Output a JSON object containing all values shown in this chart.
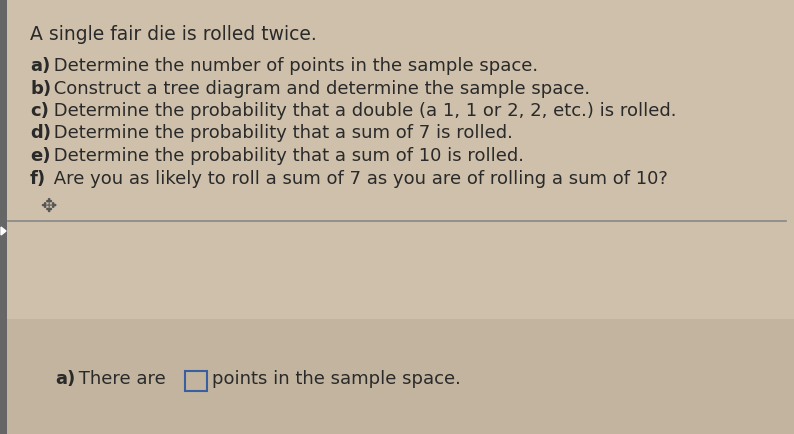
{
  "bg_color": "#cec0aa",
  "bg_color_bottom": "#c2b49e",
  "title_text": "A single fair die is rolled twice.",
  "questions": [
    [
      "a)",
      " Determine the number of points in the sample space."
    ],
    [
      "b)",
      " Construct a tree diagram and determine the sample space."
    ],
    [
      "c)",
      " Determine the probability that a double (a 1, 1 or 2, 2, etc.) is rolled."
    ],
    [
      "d)",
      " Determine the probability that a sum of 7 is rolled."
    ],
    [
      "e)",
      " Determine the probability that a sum of 10 is rolled."
    ],
    [
      "f)",
      " Are you as likely to roll a sum of 7 as you are of rolling a sum of 10?"
    ]
  ],
  "answer_bold": "a)",
  "answer_label": " There are",
  "answer_suffix": "points in the sample space.",
  "left_arrow_color": "#4a4a4a",
  "title_fontsize": 13.5,
  "question_fontsize": 13.0,
  "answer_fontsize": 13.0,
  "text_color": "#2a2a2a",
  "divider_color": "#888888",
  "box_color": "#3a5fa0"
}
